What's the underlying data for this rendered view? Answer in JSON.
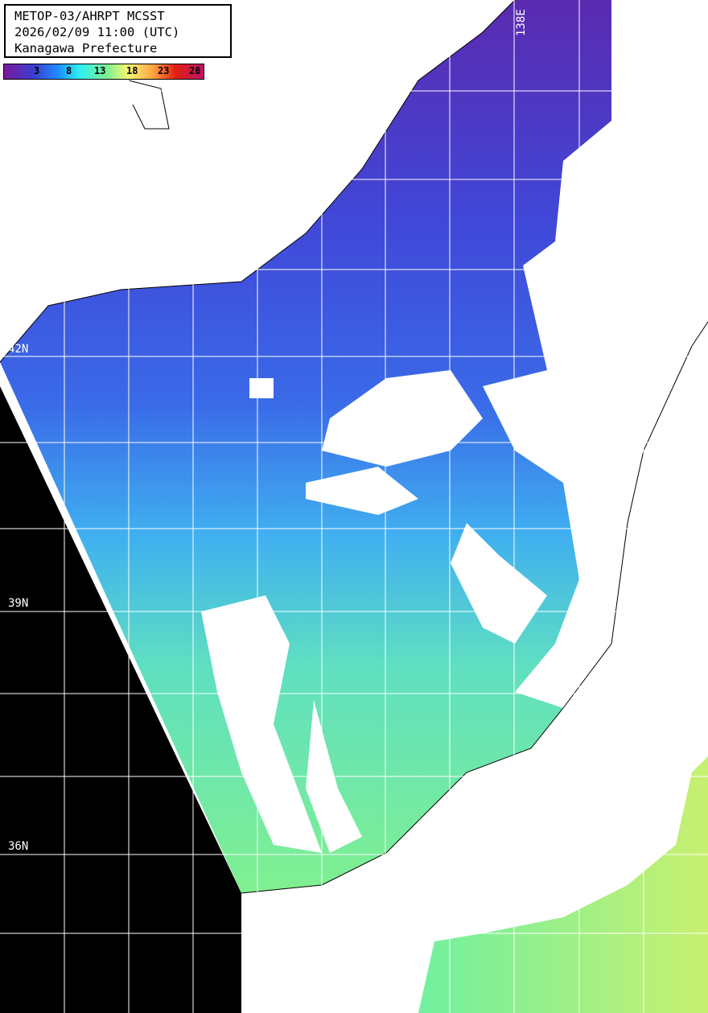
{
  "title": {
    "line1": "METOP-03/AHRPT MCSST",
    "line2": "2026/02/09 11:00 (UTC)",
    "line3": "Kanagawa Prefecture"
  },
  "colorbar": {
    "ticks": [
      "3",
      "8",
      "13",
      "18",
      "23",
      "28"
    ],
    "colors": [
      "#7a1a9a",
      "#3b3fd0",
      "#1e8cff",
      "#30f0f0",
      "#80f090",
      "#f8f870",
      "#ffa040",
      "#e02010",
      "#c0106a"
    ]
  },
  "grid": {
    "lat_labels": [
      "42N",
      "39N",
      "36N"
    ],
    "lon_labels": [
      "138E"
    ]
  }
}
